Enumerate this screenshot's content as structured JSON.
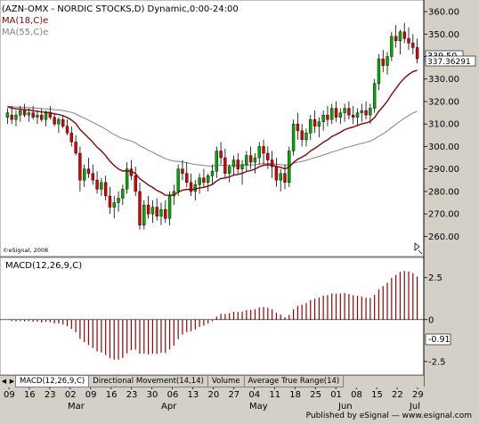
{
  "price_pane": {
    "title": "(AZN-OMX - NORDIC STOCKS,D) Dynamic,0:00-24:00",
    "ma1_label": "MA(18,C)e",
    "ma2_label": "MA(55,C)e",
    "watermark": "©eSignal, 2008",
    "last_price": "339.50",
    "ma_value_tag": "337.36291"
  },
  "macd_pane": {
    "label": "MACD(12,26,9,C)",
    "last_value": "-0.91"
  },
  "tabs": [
    "MACD(12,26,9,C)",
    "Directional Movement(14,14)",
    "Volume",
    "Average True Range(14)"
  ],
  "active_tab": 0,
  "footer": "Published by eSignal — www.esignal.com",
  "colors": {
    "up_candle": "#00aa00",
    "down_candle": "#dd0000",
    "ma18": "#8b0000",
    "ma55": "#808080",
    "macd_bars": "#990000",
    "panel_bg": "#ffffff",
    "chrome": "#d4d0c8"
  },
  "chart_data": [
    {
      "type": "candlestick",
      "title": "(AZN-OMX - NORDIC STOCKS,D) Dynamic,0:00-24:00",
      "y_range": [
        255,
        362
      ],
      "y_ticks": [
        260,
        270,
        280,
        290,
        300,
        310,
        320,
        330,
        340,
        350,
        360
      ],
      "x_tick_labels": [
        "09",
        "16",
        "23",
        "02",
        "09",
        "16",
        "23",
        "30",
        "06",
        "13",
        "20",
        "27",
        "04",
        "11",
        "18",
        "25",
        "01",
        "08",
        "15",
        "22",
        "29"
      ],
      "month_labels": [
        "Mar",
        "Apr",
        "May",
        "Jun",
        "Jul"
      ],
      "candles": [
        [
          313,
          317,
          310,
          315
        ],
        [
          314,
          318,
          310,
          312
        ],
        [
          312,
          316,
          309,
          314
        ],
        [
          314,
          318,
          311,
          316
        ],
        [
          316,
          319,
          313,
          314
        ],
        [
          314,
          317,
          311,
          315
        ],
        [
          315,
          318,
          312,
          313
        ],
        [
          313,
          316,
          310,
          314
        ],
        [
          314,
          317,
          311,
          312
        ],
        [
          312,
          316,
          309,
          315
        ],
        [
          315,
          318,
          312,
          313
        ],
        [
          313,
          315,
          309,
          310
        ],
        [
          310,
          313,
          306,
          312
        ],
        [
          312,
          314,
          308,
          309
        ],
        [
          309,
          312,
          305,
          306
        ],
        [
          306,
          309,
          300,
          302
        ],
        [
          302,
          305,
          296,
          297
        ],
        [
          297,
          300,
          280,
          285
        ],
        [
          285,
          292,
          282,
          290
        ],
        [
          290,
          295,
          286,
          288
        ],
        [
          288,
          292,
          283,
          285
        ],
        [
          285,
          289,
          279,
          281
        ],
        [
          281,
          286,
          278,
          284
        ],
        [
          284,
          287,
          276,
          278
        ],
        [
          278,
          282,
          270,
          273
        ],
        [
          273,
          278,
          268,
          275
        ],
        [
          275,
          280,
          271,
          277
        ],
        [
          277,
          283,
          274,
          281
        ],
        [
          281,
          293,
          279,
          290
        ],
        [
          290,
          294,
          285,
          287
        ],
        [
          287,
          291,
          278,
          280
        ],
        [
          280,
          284,
          263,
          265
        ],
        [
          265,
          276,
          263,
          274
        ],
        [
          274,
          278,
          268,
          270
        ],
        [
          270,
          276,
          266,
          273
        ],
        [
          273,
          277,
          267,
          269
        ],
        [
          269,
          275,
          265,
          272
        ],
        [
          272,
          276,
          266,
          268
        ],
        [
          268,
          280,
          265,
          278
        ],
        [
          278,
          283,
          274,
          280
        ],
        [
          280,
          292,
          278,
          290
        ],
        [
          290,
          294,
          285,
          288
        ],
        [
          288,
          293,
          282,
          284
        ],
        [
          284,
          288,
          278,
          280
        ],
        [
          280,
          285,
          276,
          283
        ],
        [
          283,
          288,
          279,
          286
        ],
        [
          286,
          290,
          282,
          284
        ],
        [
          284,
          288,
          280,
          287
        ],
        [
          287,
          292,
          283,
          289
        ],
        [
          289,
          300,
          286,
          298
        ],
        [
          298,
          302,
          292,
          295
        ],
        [
          295,
          299,
          286,
          288
        ],
        [
          288,
          292,
          284,
          291
        ],
        [
          291,
          296,
          287,
          294
        ],
        [
          294,
          297,
          288,
          290
        ],
        [
          290,
          294,
          283,
          292
        ],
        [
          292,
          298,
          289,
          296
        ],
        [
          296,
          300,
          290,
          293
        ],
        [
          293,
          297,
          288,
          295
        ],
        [
          295,
          302,
          292,
          300
        ],
        [
          300,
          303,
          292,
          297
        ],
        [
          297,
          300,
          290,
          294
        ],
        [
          294,
          298,
          286,
          291
        ],
        [
          291,
          295,
          282,
          285
        ],
        [
          285,
          290,
          280,
          288
        ],
        [
          288,
          292,
          281,
          284
        ],
        [
          284,
          300,
          282,
          298
        ],
        [
          298,
          312,
          296,
          310
        ],
        [
          310,
          315,
          303,
          307
        ],
        [
          307,
          310,
          300,
          303
        ],
        [
          303,
          308,
          300,
          306
        ],
        [
          306,
          314,
          303,
          312
        ],
        [
          312,
          316,
          306,
          309
        ],
        [
          309,
          313,
          304,
          311
        ],
        [
          311,
          316,
          307,
          314
        ],
        [
          314,
          318,
          309,
          312
        ],
        [
          312,
          319,
          310,
          317
        ],
        [
          317,
          320,
          311,
          313
        ],
        [
          313,
          317,
          310,
          315
        ],
        [
          315,
          319,
          311,
          317
        ],
        [
          317,
          320,
          312,
          314
        ],
        [
          314,
          318,
          310,
          313
        ],
        [
          313,
          317,
          309,
          315
        ],
        [
          315,
          319,
          311,
          316
        ],
        [
          316,
          320,
          312,
          314
        ],
        [
          314,
          319,
          310,
          317
        ],
        [
          317,
          330,
          315,
          328
        ],
        [
          328,
          341,
          325,
          339
        ],
        [
          339,
          343,
          333,
          336
        ],
        [
          336,
          342,
          332,
          340
        ],
        [
          340,
          351,
          338,
          349
        ],
        [
          349,
          354,
          344,
          347
        ],
        [
          347,
          352,
          341,
          351
        ],
        [
          351,
          355,
          346,
          348
        ],
        [
          348,
          353,
          343,
          346
        ],
        [
          346,
          350,
          341,
          344
        ],
        [
          344,
          348,
          337,
          339
        ]
      ],
      "ma18_last": 337.36291,
      "last_close": 339.5
    },
    {
      "type": "bar",
      "title": "MACD(12,26,9,C)",
      "y_range": [
        -3.2,
        3.6
      ],
      "y_ticks": [
        2.5,
        0,
        -2.5
      ],
      "last_value": -0.91
    }
  ]
}
